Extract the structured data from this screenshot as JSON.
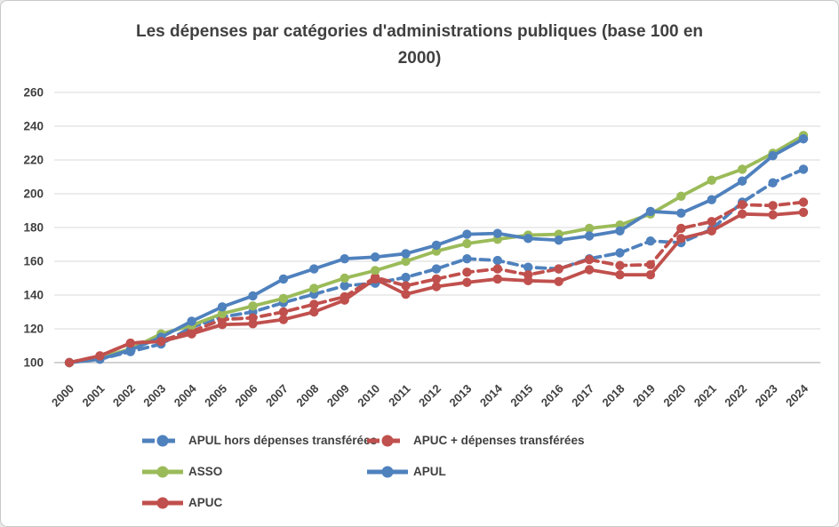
{
  "window": {
    "background": "#ffffff",
    "border_color": "#c9c9c9"
  },
  "chart_data": {
    "type": "line",
    "title": "Les dépenses par catégories d'administrations publiques (base 100 en 2000)",
    "title_lines": [
      "Les dépenses par catégories d'administrations publiques (base 100 en",
      "2000)"
    ],
    "xlabel": "",
    "ylabel": "",
    "categories": [
      "2000",
      "2001",
      "2002",
      "2003",
      "2004",
      "2005",
      "2006",
      "2007",
      "2008",
      "2009",
      "2010",
      "2011",
      "2012",
      "2013",
      "2014",
      "2015",
      "2016",
      "2017",
      "2018",
      "2019",
      "2020",
      "2021",
      "2022",
      "2023",
      "2024"
    ],
    "yticks": [
      100,
      120,
      140,
      160,
      180,
      200,
      220,
      240,
      260
    ],
    "ylim": [
      100,
      260
    ],
    "grid": true,
    "legend_position": "bottom",
    "text_color": "#404040",
    "grid_color": "#d9d9d9",
    "axis_color": "#b7b7b7",
    "series": [
      {
        "name": "APUL hors dépenses transférées",
        "color": "#4F81BD",
        "dash": true,
        "values": [
          100,
          102,
          106.5,
          111,
          121,
          127,
          130,
          135.5,
          140.5,
          145.5,
          147,
          150.5,
          155.5,
          161.5,
          160.5,
          156.5,
          155.5,
          161.5,
          165,
          172,
          171,
          179,
          195,
          206.5,
          214.5
        ]
      },
      {
        "name": "APUC + dépenses transférées",
        "color": "#C0504D",
        "dash": true,
        "values": [
          100,
          104,
          111.5,
          113,
          118.5,
          125.5,
          126.5,
          130,
          134.5,
          139,
          150.5,
          145.5,
          149.5,
          153.5,
          155.5,
          152,
          155.5,
          161,
          157.5,
          158,
          179.5,
          183.5,
          193.5,
          193,
          195
        ]
      },
      {
        "name": "ASSO",
        "color": "#9BBB59",
        "dash": false,
        "values": [
          100,
          103,
          108,
          117,
          122,
          129,
          133.5,
          138,
          144,
          150,
          154.5,
          160,
          166,
          170.5,
          173,
          175.5,
          176,
          179.5,
          181.5,
          188,
          198.5,
          208,
          214.5,
          224,
          234.5
        ]
      },
      {
        "name": "APUL",
        "color": "#4F81BD",
        "dash": false,
        "values": [
          100,
          102,
          107.5,
          115,
          124.5,
          133,
          139.5,
          149.5,
          155.5,
          161.5,
          162.5,
          164.5,
          169.5,
          176,
          176.5,
          173.5,
          172.5,
          175,
          178,
          189.5,
          188.5,
          196.5,
          207.5,
          222.5,
          232.5
        ]
      },
      {
        "name": "APUC",
        "color": "#C0504D",
        "dash": false,
        "values": [
          100,
          104,
          111.5,
          112.5,
          117,
          122.5,
          123,
          125.5,
          130,
          137,
          149.5,
          140.5,
          145,
          147.5,
          149.5,
          148.5,
          148,
          155,
          152,
          152,
          173.5,
          178,
          188,
          187.5,
          189
        ]
      }
    ]
  },
  "legend": {
    "order": [
      0,
      1,
      2,
      3,
      4
    ]
  }
}
